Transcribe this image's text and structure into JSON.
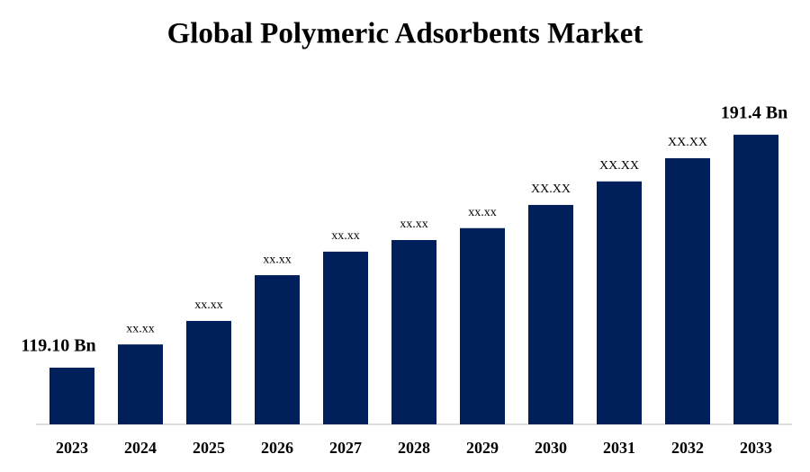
{
  "chart_data": {
    "type": "bar",
    "title": "Global Polymeric Adsorbents Market",
    "categories": [
      "2023",
      "2024",
      "2025",
      "2026",
      "2027",
      "2028",
      "2029",
      "2030",
      "2031",
      "2032",
      "2033"
    ],
    "values": [
      119.1,
      126.3,
      133.6,
      147.8,
      155.1,
      158.7,
      162.4,
      169.6,
      176.9,
      184.1,
      191.4
    ],
    "value_labels": [
      "119.10 Bn",
      "xx.xx",
      "xx.xx",
      "xx.xx",
      "xx.xx",
      "xx.xx",
      "xx.xx",
      "XX.XX",
      "XX.XX",
      "XX.XX",
      "191.4 Bn"
    ],
    "color": "#001f5b",
    "ylim": [
      101.5,
      200
    ]
  }
}
